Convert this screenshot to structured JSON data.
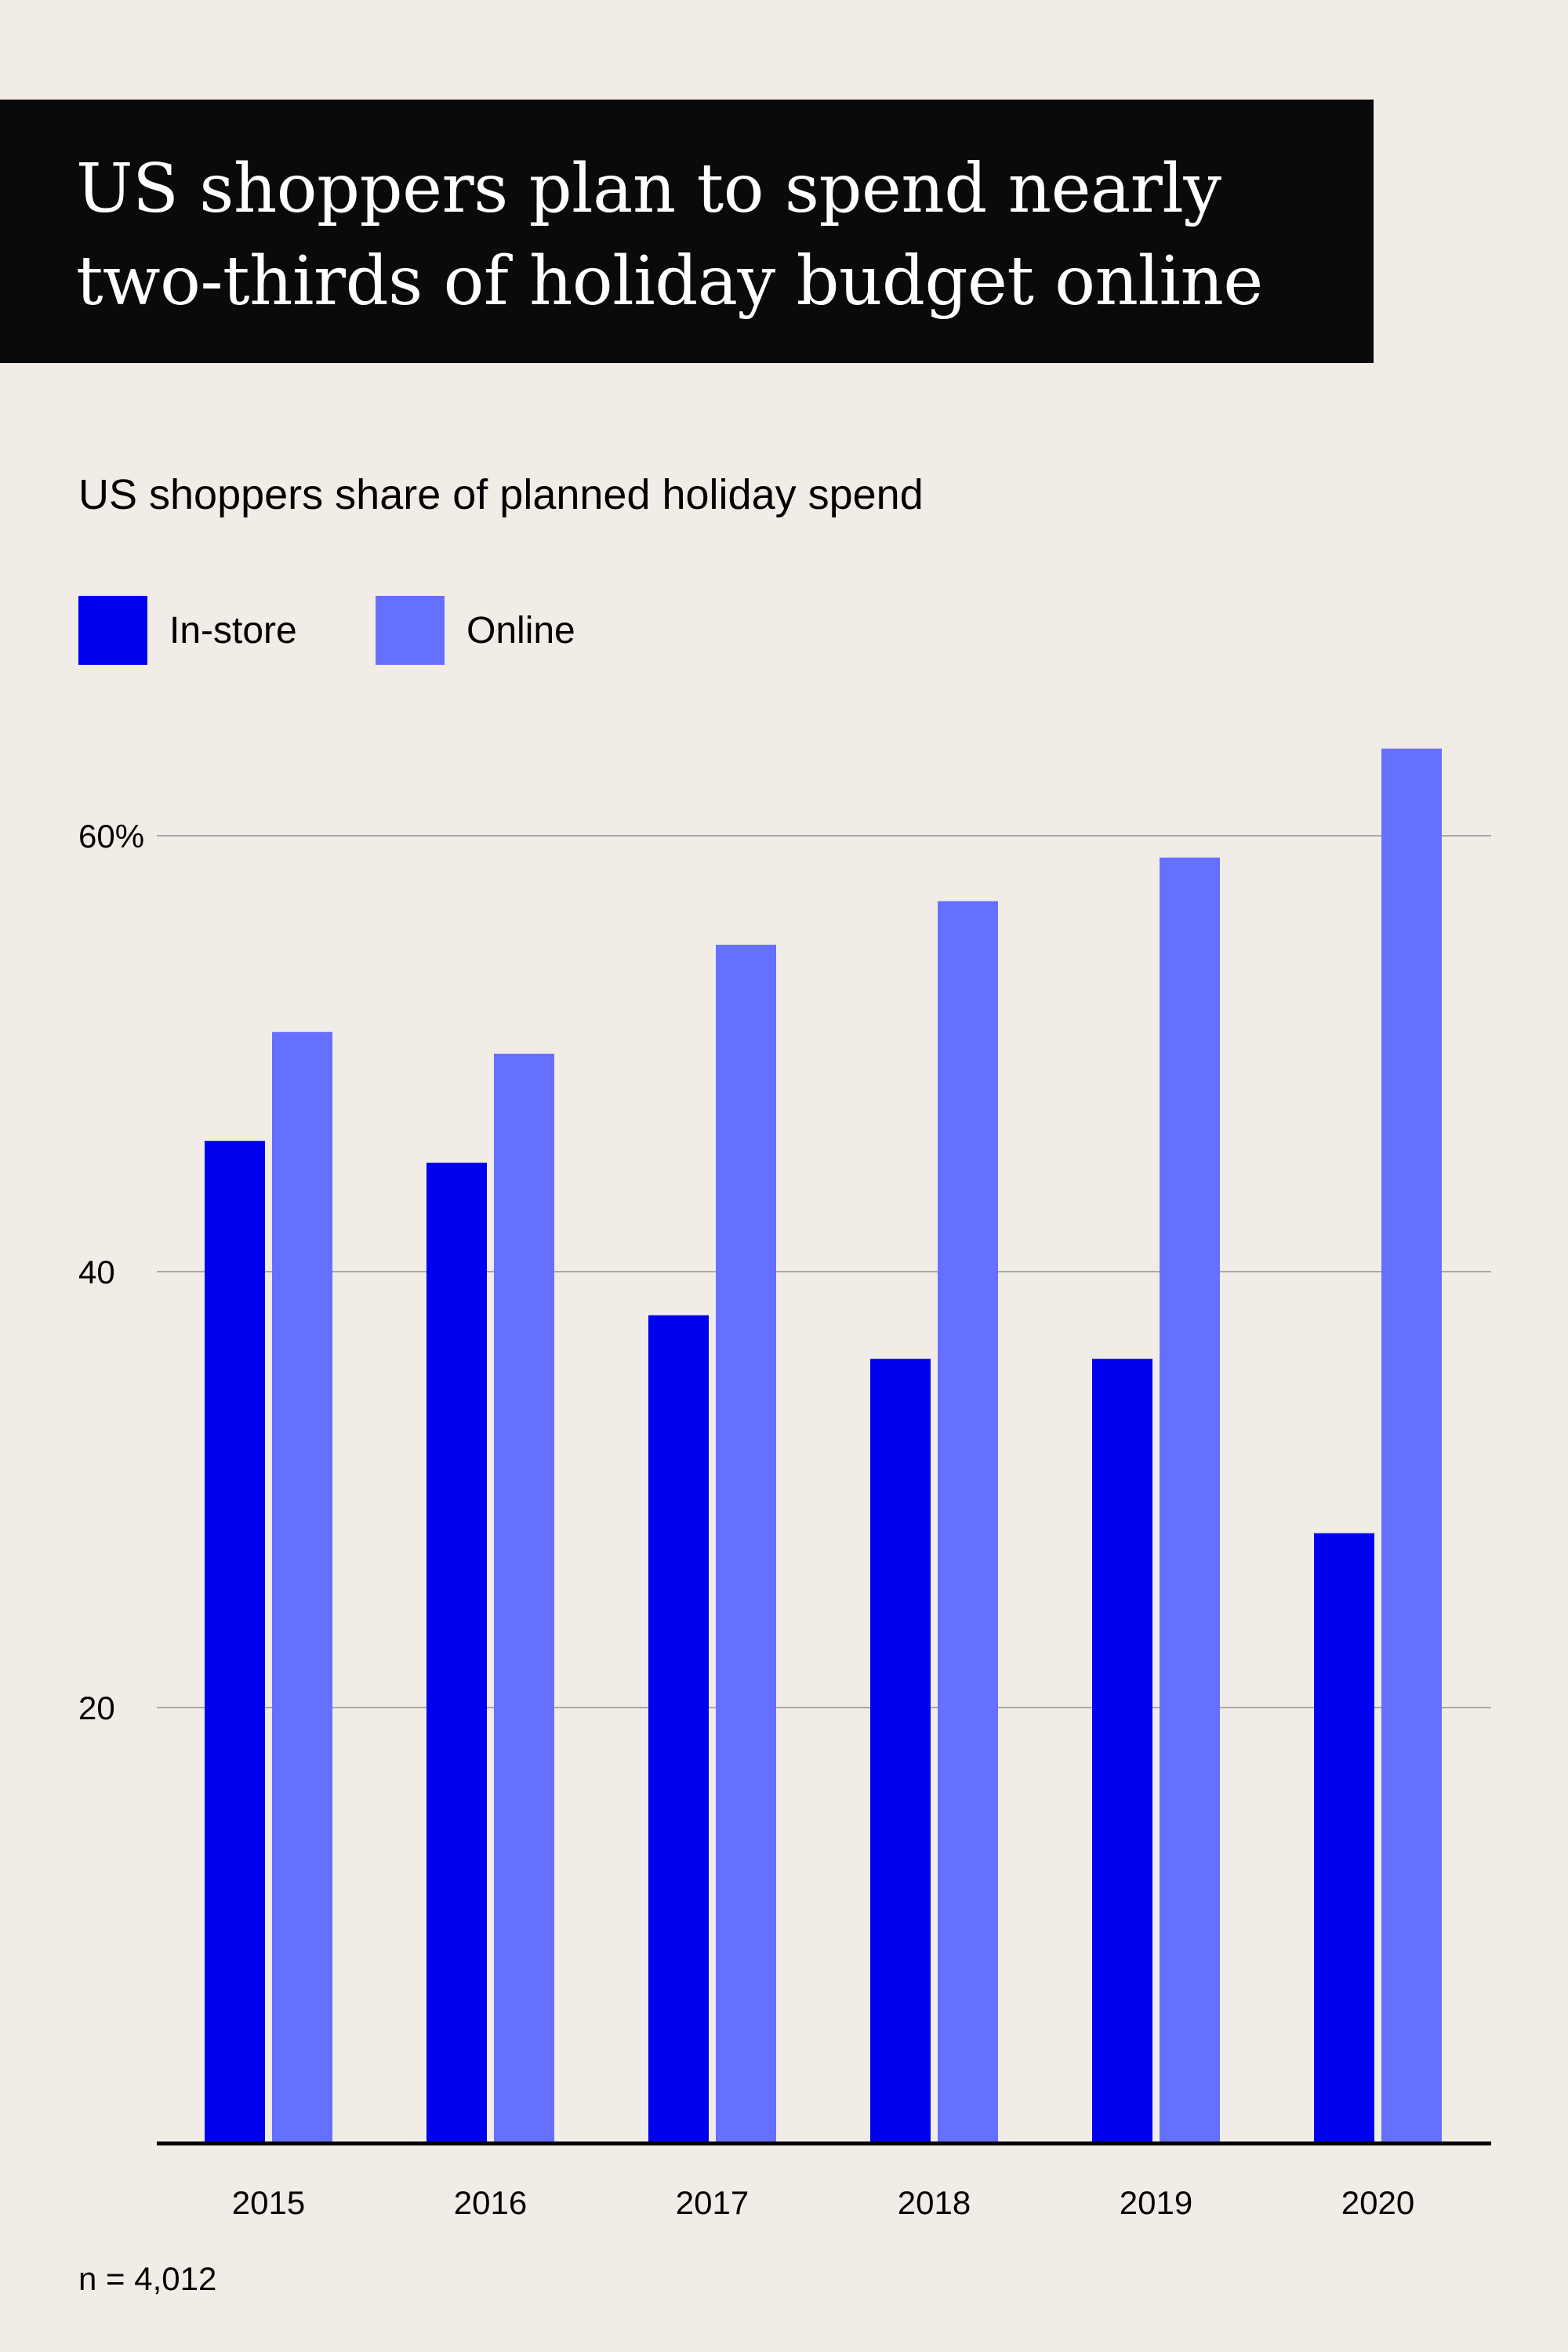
{
  "colors": {
    "background": "#f1ede6",
    "title_bg": "#0a0a0a",
    "in_store": "#0000f0",
    "online": "#6670ff",
    "gridline": "#a8a8a8",
    "baseline": "#000000"
  },
  "title_lines": [
    "US shoppers plan to spend nearly",
    "two-thirds of holiday budget online"
  ],
  "legend": [
    {
      "label": "In-store",
      "color": "#0000f0"
    },
    {
      "label": "Online",
      "color": "#6670ff"
    }
  ],
  "note": "n = 4,012",
  "chart_data": {
    "type": "bar",
    "title": "US shoppers plan to spend nearly two-thirds of holiday budget online",
    "subtitle": "US shoppers share of planned holiday spend",
    "categories": [
      "2015",
      "2016",
      "2017",
      "2018",
      "2019",
      "2020"
    ],
    "series": [
      {
        "name": "In-store",
        "color": "#0000f0",
        "values": [
          46,
          45,
          38,
          36,
          36,
          28
        ]
      },
      {
        "name": "Online",
        "color": "#6670ff",
        "values": [
          51,
          50,
          55,
          57,
          59,
          64
        ]
      }
    ],
    "ylim": [
      0,
      64
    ],
    "yticks": [
      20,
      40,
      60
    ],
    "ytick_labels": [
      "20",
      "40",
      "60%"
    ],
    "grid": true,
    "legend_position": "top-left",
    "xlabel": "",
    "ylabel": ""
  }
}
